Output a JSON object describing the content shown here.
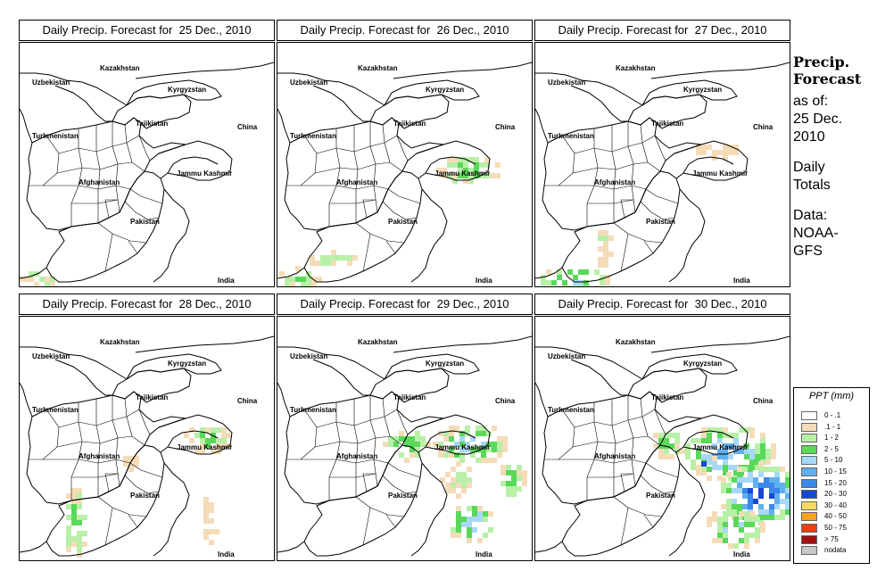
{
  "panels": [
    {
      "title": "Daily Precip. Forecast for  25 Dec., 2010",
      "level": 0
    },
    {
      "title": "Daily Precip. Forecast for  26 Dec., 2010",
      "level": 1
    },
    {
      "title": "Daily Precip. Forecast for  27 Dec., 2010",
      "level": 1
    },
    {
      "title": "Daily Precip. Forecast for  28 Dec., 2010",
      "level": 2
    },
    {
      "title": "Daily Precip. Forecast for  29 Dec., 2010",
      "level": 3
    },
    {
      "title": "Daily Precip. Forecast for  30 Dec., 2010",
      "level": 4
    }
  ],
  "map_labels": {
    "uzbekistan": "Uzbekistan",
    "kazakhstan": "Kazakhstan",
    "kyrgyzstan": "Kyrgyzstan",
    "tajikistan": "Tajikistan",
    "turkmenistan": "Turkmenistan",
    "china": "China",
    "afghanistan": "Afghanistan",
    "jammu_kashmir": "Jammu Kashmir",
    "pakistan": "Pakistan",
    "india": "India"
  },
  "side_panel": {
    "title_line1": "Precip.",
    "title_line2": "Forecast",
    "asof_line1": "as of:",
    "asof_line2": "25 Dec.",
    "asof_line3": "2010",
    "totals_line1": "Daily",
    "totals_line2": "Totals",
    "data_line1": "Data:",
    "data_line2": "NOAA-",
    "data_line3": "GFS"
  },
  "legend": {
    "title": "PPT (mm)",
    "items": [
      {
        "label": "0 - .1",
        "color": "#ffffff"
      },
      {
        "label": ".1 - 1",
        "color": "#f5dcb8"
      },
      {
        "label": "1 - 2",
        "color": "#b8f0a8"
      },
      {
        "label": "2 - 5",
        "color": "#5ad85a"
      },
      {
        "label": "5 - 10",
        "color": "#a8d8f8"
      },
      {
        "label": "10 - 15",
        "color": "#60b0f0"
      },
      {
        "label": "15 - 20",
        "color": "#3a88e8"
      },
      {
        "label": "20 - 30",
        "color": "#1848d0"
      },
      {
        "label": "30 - 40",
        "color": "#f8d860"
      },
      {
        "label": "40 - 50",
        "color": "#f8a020"
      },
      {
        "label": "50 - 75",
        "color": "#e84010"
      },
      {
        "label": "> 75",
        "color": "#a01010"
      },
      {
        "label": "nodata",
        "color": "#c8c8c8"
      }
    ]
  }
}
